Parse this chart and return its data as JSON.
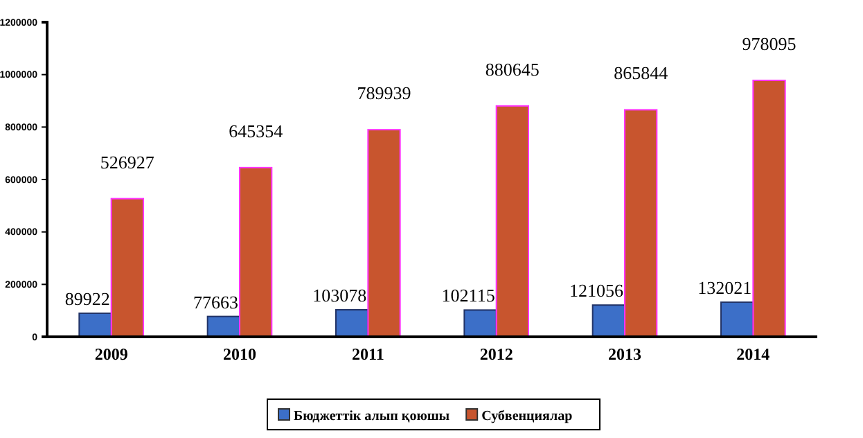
{
  "chart_data": {
    "type": "bar",
    "categories": [
      "2009",
      "2010",
      "2011",
      "2012",
      "2013",
      "2014"
    ],
    "series": [
      {
        "name": "Бюджеттік алып қоюшы",
        "color": "#3c6fc8",
        "values": [
          89922,
          77663,
          103078,
          102115,
          121056,
          132021
        ]
      },
      {
        "name": "Субвенциялар",
        "color": "#c8552e",
        "values": [
          526927,
          645354,
          789939,
          880645,
          865844,
          978095
        ]
      }
    ],
    "ylim": [
      0,
      1200000
    ],
    "yticks": [
      0,
      200000,
      400000,
      600000,
      800000,
      1000000,
      1200000
    ],
    "data_labels": true,
    "legend": "bottom",
    "grid": false
  }
}
